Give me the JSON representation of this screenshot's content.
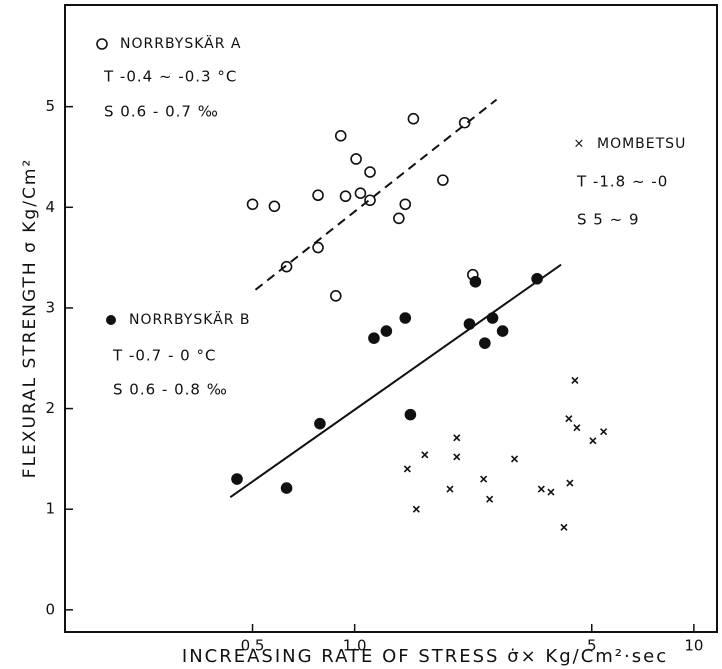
{
  "chart_data": {
    "type": "scatter",
    "x_label": "INCREASING RATE OF STRESS  σ̇× Kg/Cm²·sec",
    "y_label": "FLEXURAL STRENGTH  σ Kg/Cm²",
    "log_x": true,
    "xlim": [
      0.14,
      11.7
    ],
    "ylim": [
      -0.22,
      6.01
    ],
    "xticks": [
      0.5,
      {
        "value": 1,
        "label": "1.0"
      },
      5,
      10
    ],
    "yticks": [
      0,
      1,
      2,
      3,
      4,
      5
    ],
    "series": [
      {
        "name": "NORRBYSKÄR  A",
        "marker": "open-circle",
        "color": "#111111",
        "notes": [
          "T -0.4 ~ -0.3 °C",
          "S  0.6 -  0.7 ‰"
        ],
        "x": [
          0.5,
          0.58,
          0.78,
          0.63,
          0.78,
          0.91,
          0.94,
          1.01,
          1.04,
          1.11,
          1.11,
          1.35,
          1.41,
          1.49,
          1.82,
          2.11,
          2.23,
          0.88
        ],
        "values": [
          4.03,
          4.01,
          4.12,
          3.41,
          3.6,
          4.71,
          4.11,
          4.48,
          4.14,
          4.35,
          4.07,
          3.89,
          4.03,
          4.88,
          4.27,
          4.84,
          3.33,
          3.12
        ]
      },
      {
        "name": "NORRBYSKÄR  B",
        "marker": "filled-circle",
        "color": "#111111",
        "notes": [
          "T -0.7  -  0  °C",
          "S  0.6 - 0.8  ‰"
        ],
        "x": [
          0.45,
          0.63,
          0.79,
          1.14,
          1.24,
          1.41,
          1.46,
          2.18,
          2.27,
          2.42,
          2.55,
          2.73,
          3.45
        ],
        "values": [
          1.3,
          1.21,
          1.85,
          2.7,
          2.77,
          2.9,
          1.94,
          2.84,
          3.26,
          2.65,
          2.9,
          2.77,
          3.29
        ]
      },
      {
        "name": "MOMBETSU",
        "marker": "cross",
        "color": "#111111",
        "notes": [
          "T  -1.8  ~ -0",
          "S    5    ~    9"
        ],
        "x": [
          1.43,
          1.61,
          1.52,
          2.0,
          2.0,
          1.91,
          2.5,
          2.4,
          2.96,
          3.55,
          3.79,
          4.14,
          4.31,
          4.46,
          4.28,
          4.52,
          5.04,
          5.42
        ],
        "values": [
          1.4,
          1.54,
          1.0,
          1.71,
          1.52,
          1.2,
          1.1,
          1.3,
          1.5,
          1.2,
          1.17,
          0.82,
          1.26,
          2.28,
          1.9,
          1.81,
          1.68,
          1.77
        ]
      }
    ],
    "fit_lines": [
      {
        "style": "dashed",
        "x": [
          0.51,
          2.62
        ],
        "values": [
          3.18,
          5.07
        ]
      },
      {
        "style": "solid",
        "x": [
          0.43,
          4.06
        ],
        "values": [
          1.12,
          3.43
        ]
      }
    ]
  }
}
